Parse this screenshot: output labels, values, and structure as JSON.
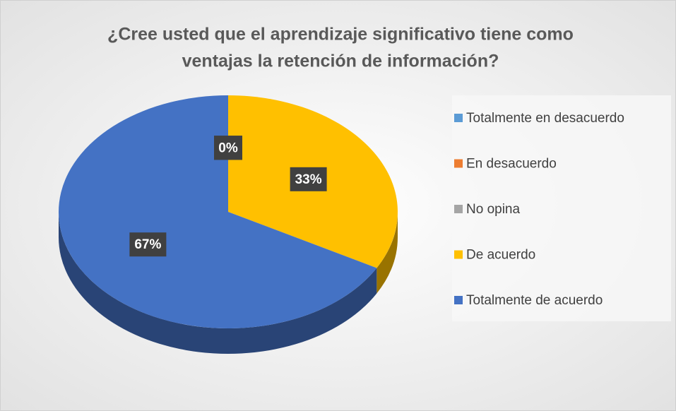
{
  "chart_data": {
    "type": "pie",
    "title": [
      "¿Cree usted que el aprendizaje significativo tiene como",
      "ventajas la retención de información?"
    ],
    "categories": [
      "Totalmente en desacuerdo",
      "En desacuerdo",
      "No opina",
      "De acuerdo",
      "Totalmente de acuerdo"
    ],
    "values": [
      0,
      0,
      0,
      33,
      67
    ],
    "value_labels": [
      "0%",
      "0%",
      "0%",
      "33%",
      "67%"
    ],
    "colors": [
      "#5b9bd5",
      "#ed7d31",
      "#a5a5a5",
      "#ffc000",
      "#4472c4"
    ],
    "legend": "right"
  }
}
